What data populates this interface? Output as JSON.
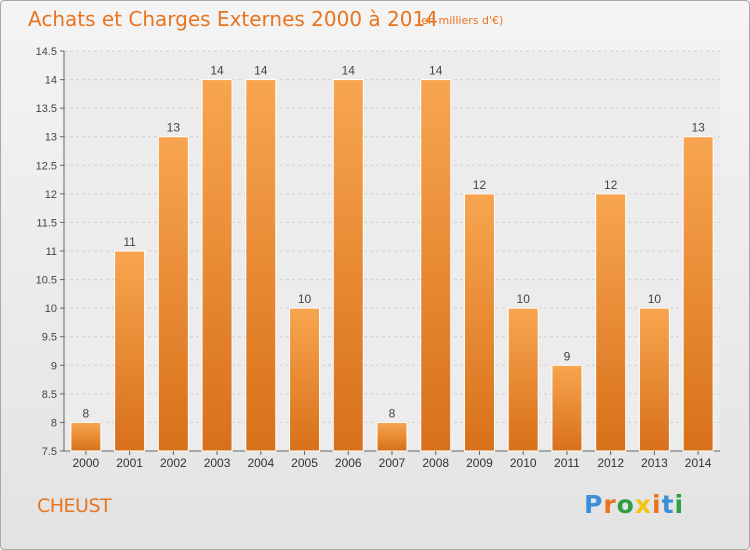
{
  "header": {
    "title": "Achats et Charges Externes 2000 à 2014",
    "subtitle": "(en milliers d'€)"
  },
  "footer": {
    "commune": "CHEUST",
    "logo_letters": [
      "P",
      "r",
      "o",
      "x",
      "i",
      "t",
      "i"
    ],
    "logo_colors": [
      "#3b8fd6",
      "#e8741f",
      "#2f9e44",
      "#f1c40f",
      "#e8741f",
      "#3b8fd6",
      "#2f9e44"
    ]
  },
  "colors": {
    "bar_top": "#f8a54f",
    "bar_bottom": "#d8701a",
    "accent": "#e8741f"
  },
  "chart_data": {
    "type": "bar",
    "title": "Achats et Charges Externes 2000 à 2014",
    "subtitle": "(en milliers d'€)",
    "categories": [
      "2000",
      "2001",
      "2002",
      "2003",
      "2004",
      "2005",
      "2006",
      "2007",
      "2008",
      "2009",
      "2010",
      "2011",
      "2012",
      "2013",
      "2014"
    ],
    "values": [
      8,
      11,
      13,
      14,
      14,
      10,
      14,
      8,
      14,
      12,
      10,
      9,
      12,
      10,
      13
    ],
    "data_labels": [
      "8",
      "11",
      "13",
      "14",
      "14",
      "10",
      "14",
      "8",
      "14",
      "12",
      "10",
      "9",
      "12",
      "10",
      "13"
    ],
    "ylim": [
      7.5,
      14.5
    ],
    "yticks": [
      7.5,
      8,
      8.5,
      9,
      9.5,
      10,
      10.5,
      11,
      11.5,
      12,
      12.5,
      13,
      13.5,
      14,
      14.5
    ],
    "ytick_labels": [
      "7.5",
      "8",
      "8.5",
      "9",
      "9.5",
      "10",
      "10.5",
      "11",
      "11.5",
      "12",
      "12.5",
      "13",
      "13.5",
      "14",
      "14.5"
    ],
    "xlabel": "",
    "ylabel": "",
    "grid": true
  }
}
